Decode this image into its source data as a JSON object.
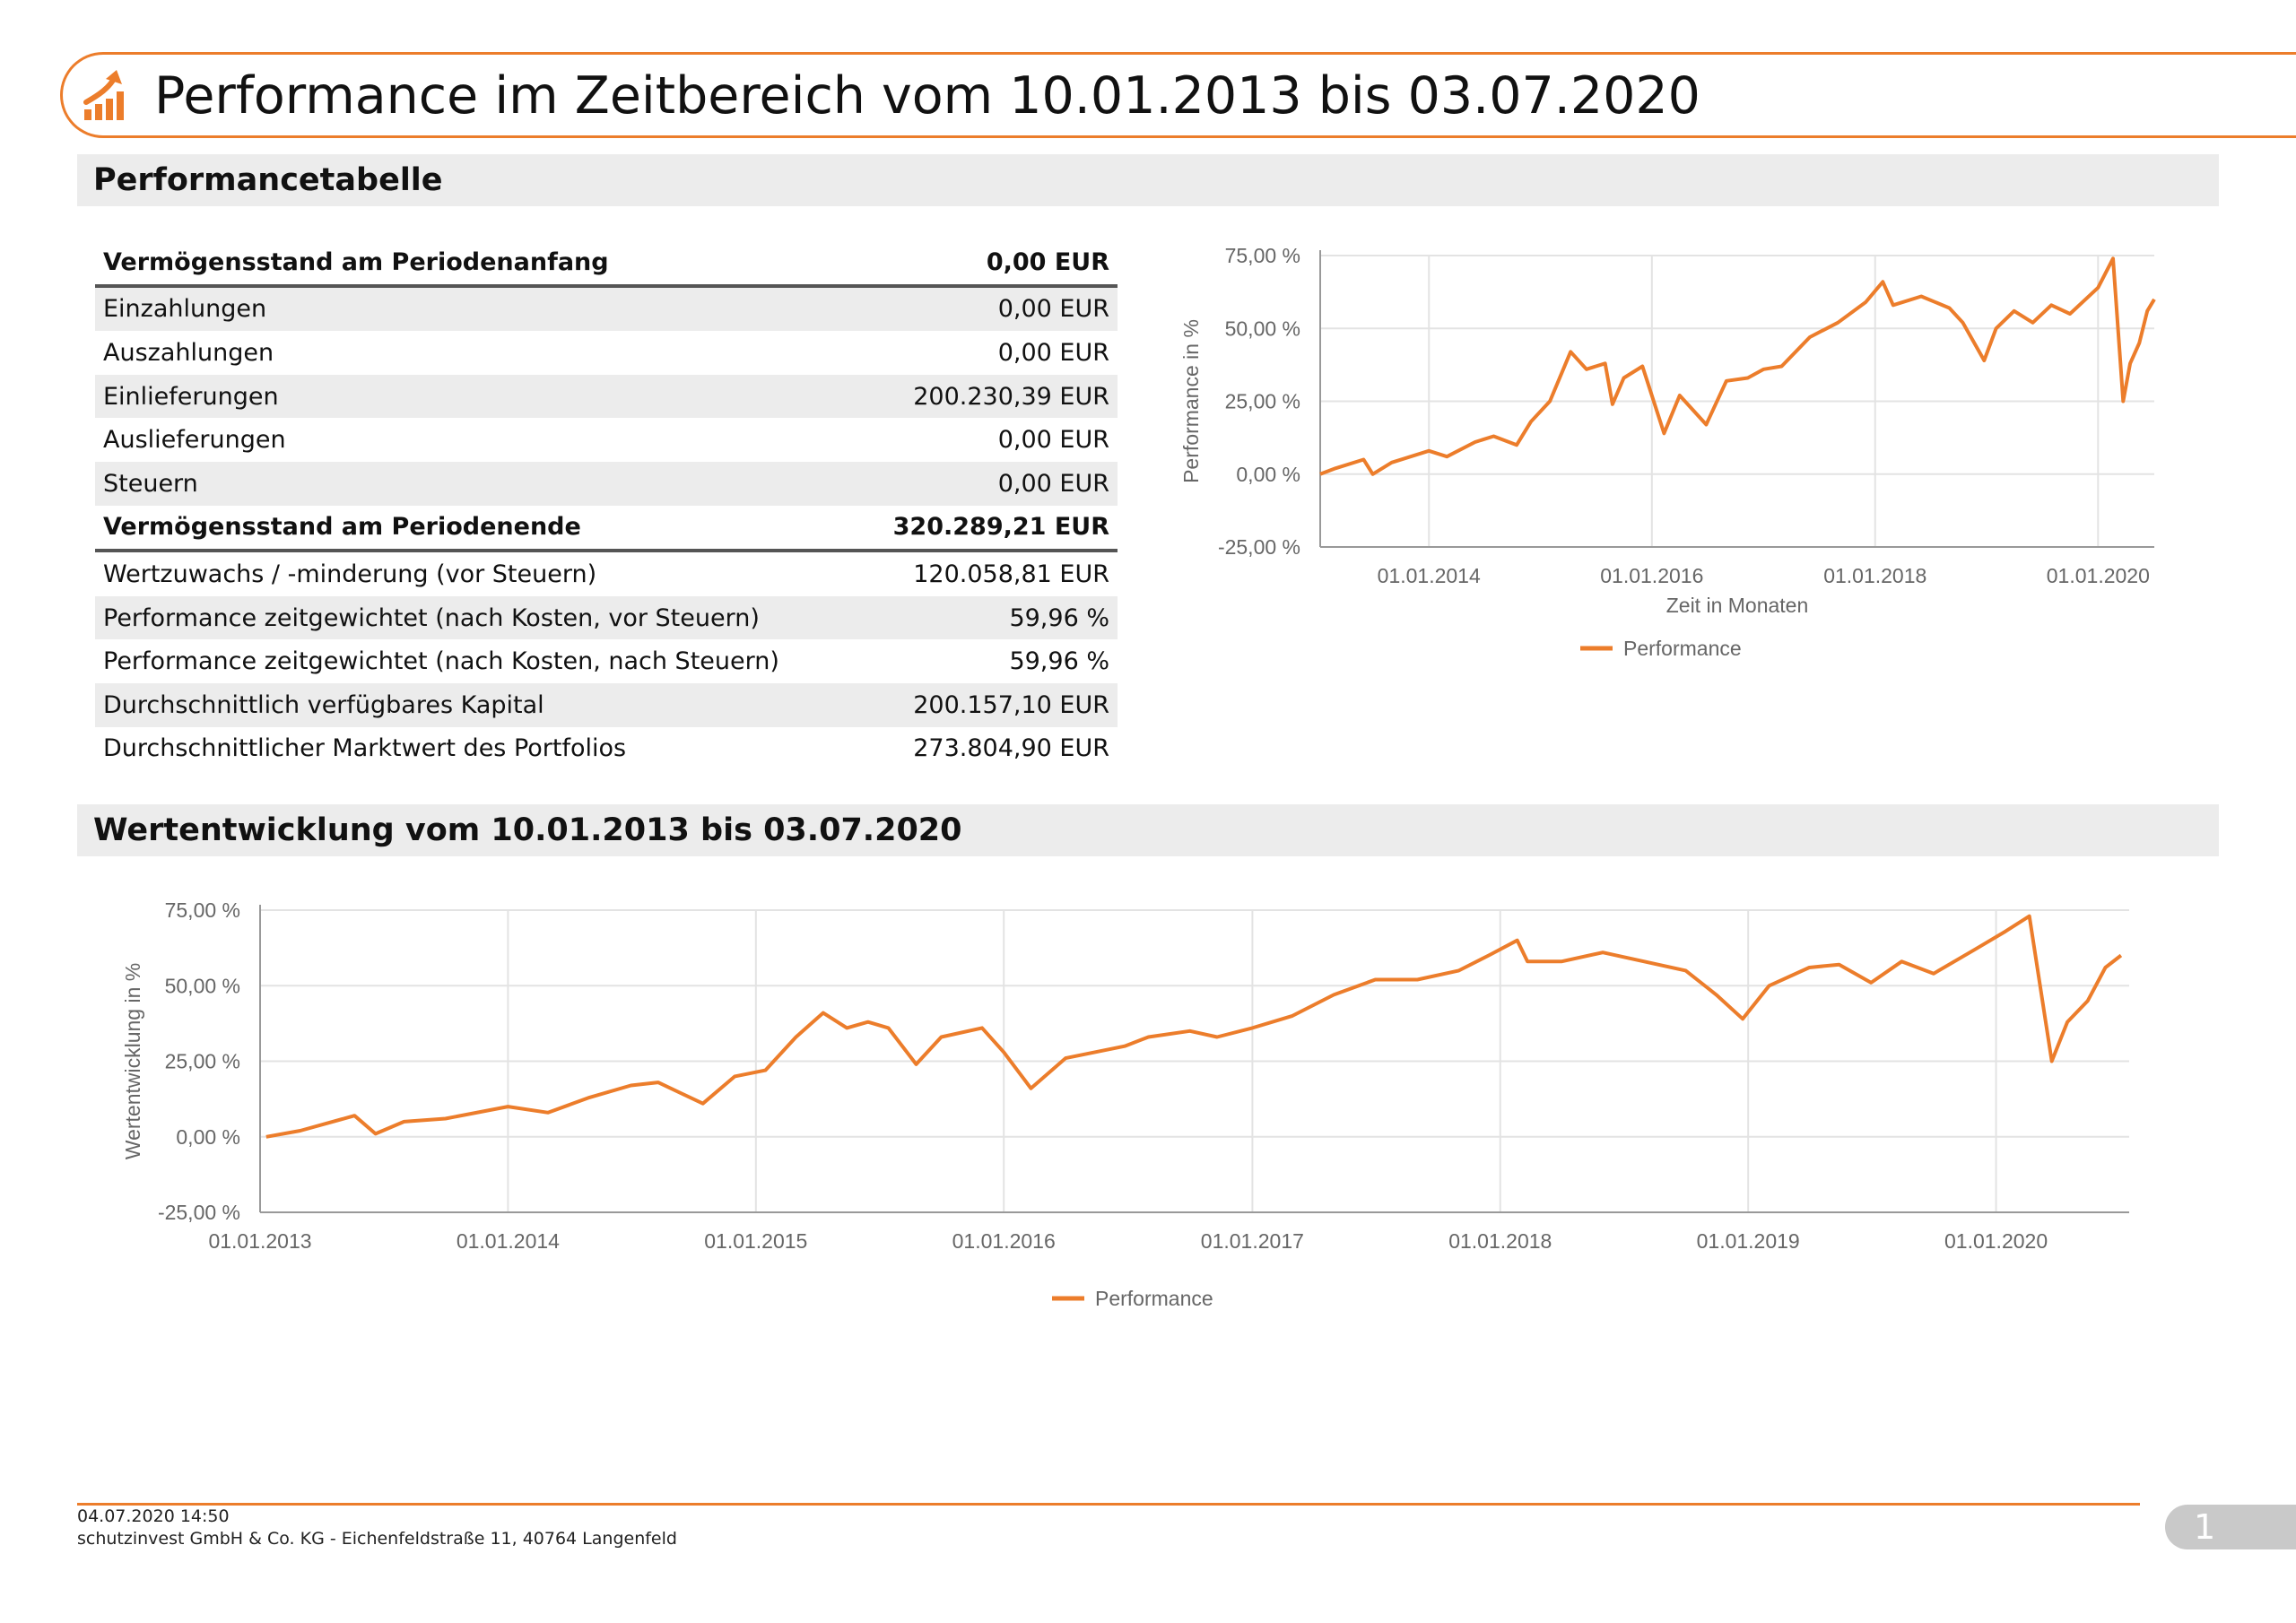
{
  "title": "Performance im Zeitbereich vom 10.01.2013 bis 03.07.2020",
  "accent_color": "#ec7d2b",
  "header_icon": "growth-chart-arrow-icon",
  "sections": {
    "table_heading": "Performancetabelle",
    "chart_heading": "Wertentwicklung vom 10.01.2013 bis 03.07.2020"
  },
  "table_rows": [
    {
      "label": "Vermögensstand am Periodenanfang",
      "value": "0,00 EUR",
      "bold": true,
      "shade": false
    },
    {
      "label": "Einzahlungen",
      "value": "0,00 EUR",
      "bold": false,
      "shade": true
    },
    {
      "label": "Auszahlungen",
      "value": "0,00 EUR",
      "bold": false,
      "shade": false
    },
    {
      "label": "Einlieferungen",
      "value": "200.230,39 EUR",
      "bold": false,
      "shade": true
    },
    {
      "label": "Auslieferungen",
      "value": "0,00 EUR",
      "bold": false,
      "shade": false
    },
    {
      "label": "Steuern",
      "value": "0,00 EUR",
      "bold": false,
      "shade": true
    },
    {
      "label": "Vermögensstand am Periodenende",
      "value": "320.289,21 EUR",
      "bold": true,
      "shade": false
    },
    {
      "label": "Wertzuwachs / -minderung (vor Steuern)",
      "value": "120.058,81 EUR",
      "bold": false,
      "shade": false
    },
    {
      "label": "Performance zeitgewichtet (nach Kosten, vor Steuern)",
      "value": "59,96 %",
      "bold": false,
      "shade": true
    },
    {
      "label": "Performance zeitgewichtet (nach Kosten, nach Steuern)",
      "value": "59,96 %",
      "bold": false,
      "shade": false
    },
    {
      "label": "Durchschnittlich verfügbares Kapital",
      "value": "200.157,10 EUR",
      "bold": false,
      "shade": true
    },
    {
      "label": "Durchschnittlicher Marktwert des Portfolios",
      "value": "273.804,90 EUR",
      "bold": false,
      "shade": false
    }
  ],
  "chart_data": [
    {
      "type": "line",
      "title": "",
      "xlabel": "Zeit in Monaten",
      "ylabel": "Performance in %",
      "ylim": [
        -25,
        75
      ],
      "yticks": [
        "75,00 %",
        "50,00 %",
        "25,00 %",
        "0,00 %",
        "-25,00 %"
      ],
      "xticks": [
        "01.01.2014",
        "01.01.2016",
        "01.01.2018",
        "01.01.2020"
      ],
      "xrange": [
        "2013-01-10",
        "2020-07-03"
      ],
      "legend": "bottom",
      "grid": true,
      "series": [
        {
          "name": "Performance",
          "color": "#ec7d2b",
          "x": [
            "2013-01-10",
            "2013-03-01",
            "2013-06-01",
            "2013-07-01",
            "2013-09-01",
            "2014-01-01",
            "2014-03-01",
            "2014-06-01",
            "2014-08-01",
            "2014-10-15",
            "2014-12-01",
            "2015-02-01",
            "2015-04-10",
            "2015-06-01",
            "2015-08-01",
            "2015-08-25",
            "2015-10-01",
            "2015-12-01",
            "2016-02-10",
            "2016-04-01",
            "2016-06-27",
            "2016-09-01",
            "2016-11-10",
            "2017-01-01",
            "2017-03-01",
            "2017-06-01",
            "2017-09-01",
            "2017-12-01",
            "2018-01-26",
            "2018-03-01",
            "2018-06-01",
            "2018-09-01",
            "2018-10-15",
            "2018-12-24",
            "2019-02-01",
            "2019-04-01",
            "2019-06-01",
            "2019-08-01",
            "2019-10-01",
            "2020-01-01",
            "2020-02-19",
            "2020-03-23",
            "2020-04-15",
            "2020-05-15",
            "2020-06-10",
            "2020-07-03"
          ],
          "y": [
            0,
            2,
            5,
            0,
            4,
            8,
            6,
            11,
            13,
            10,
            18,
            25,
            42,
            36,
            38,
            24,
            33,
            37,
            14,
            27,
            17,
            32,
            33,
            36,
            37,
            47,
            52,
            59,
            66,
            58,
            61,
            57,
            52,
            39,
            50,
            56,
            52,
            58,
            55,
            64,
            74,
            25,
            38,
            45,
            56,
            60
          ]
        }
      ]
    },
    {
      "type": "line",
      "title": "",
      "xlabel": "",
      "ylabel": "Wertentwicklung in %",
      "ylim": [
        -25,
        75
      ],
      "yticks": [
        "75,00 %",
        "50,00 %",
        "25,00 %",
        "0,00 %",
        "-25,00 %"
      ],
      "xticks": [
        "01.01.2013",
        "01.01.2014",
        "01.01.2015",
        "01.01.2016",
        "01.01.2017",
        "01.01.2018",
        "01.01.2019",
        "01.01.2020"
      ],
      "xrange": [
        "2013-01-01",
        "2020-07-15"
      ],
      "legend": "bottom",
      "grid": true,
      "series": [
        {
          "name": "Performance",
          "color": "#ec7d2b",
          "x": [
            "2013-01-10",
            "2013-03-01",
            "2013-05-20",
            "2013-06-20",
            "2013-08-01",
            "2013-10-01",
            "2014-01-01",
            "2014-03-01",
            "2014-05-01",
            "2014-07-01",
            "2014-08-10",
            "2014-10-15",
            "2014-12-01",
            "2015-01-15",
            "2015-03-01",
            "2015-04-10",
            "2015-05-15",
            "2015-06-15",
            "2015-07-15",
            "2015-08-25",
            "2015-10-01",
            "2015-11-30",
            "2016-01-01",
            "2016-02-10",
            "2016-04-01",
            "2016-06-27",
            "2016-08-01",
            "2016-10-01",
            "2016-11-10",
            "2017-01-01",
            "2017-03-01",
            "2017-05-01",
            "2017-07-01",
            "2017-09-01",
            "2017-11-01",
            "2017-12-15",
            "2018-01-26",
            "2018-02-10",
            "2018-04-01",
            "2018-06-01",
            "2018-08-01",
            "2018-10-01",
            "2018-11-15",
            "2018-12-24",
            "2019-02-01",
            "2019-04-01",
            "2019-05-15",
            "2019-07-01",
            "2019-08-15",
            "2019-10-01",
            "2019-12-01",
            "2020-01-15",
            "2020-02-19",
            "2020-03-23",
            "2020-04-15",
            "2020-05-15",
            "2020-06-10",
            "2020-07-03"
          ],
          "y": [
            0,
            2,
            7,
            1,
            5,
            6,
            10,
            8,
            13,
            17,
            18,
            11,
            20,
            22,
            33,
            41,
            36,
            38,
            36,
            24,
            33,
            36,
            28,
            16,
            26,
            30,
            33,
            35,
            33,
            36,
            40,
            47,
            52,
            52,
            55,
            60,
            65,
            58,
            58,
            61,
            58,
            55,
            47,
            39,
            50,
            56,
            57,
            51,
            58,
            54,
            62,
            68,
            73,
            25,
            38,
            45,
            56,
            60
          ]
        }
      ]
    }
  ],
  "footer": {
    "timestamp": "04.07.2020 14:50",
    "company": "schutzinvest GmbH & Co. KG - Eichenfeldstraße 11, 40764 Langenfeld",
    "page_number": "1"
  }
}
